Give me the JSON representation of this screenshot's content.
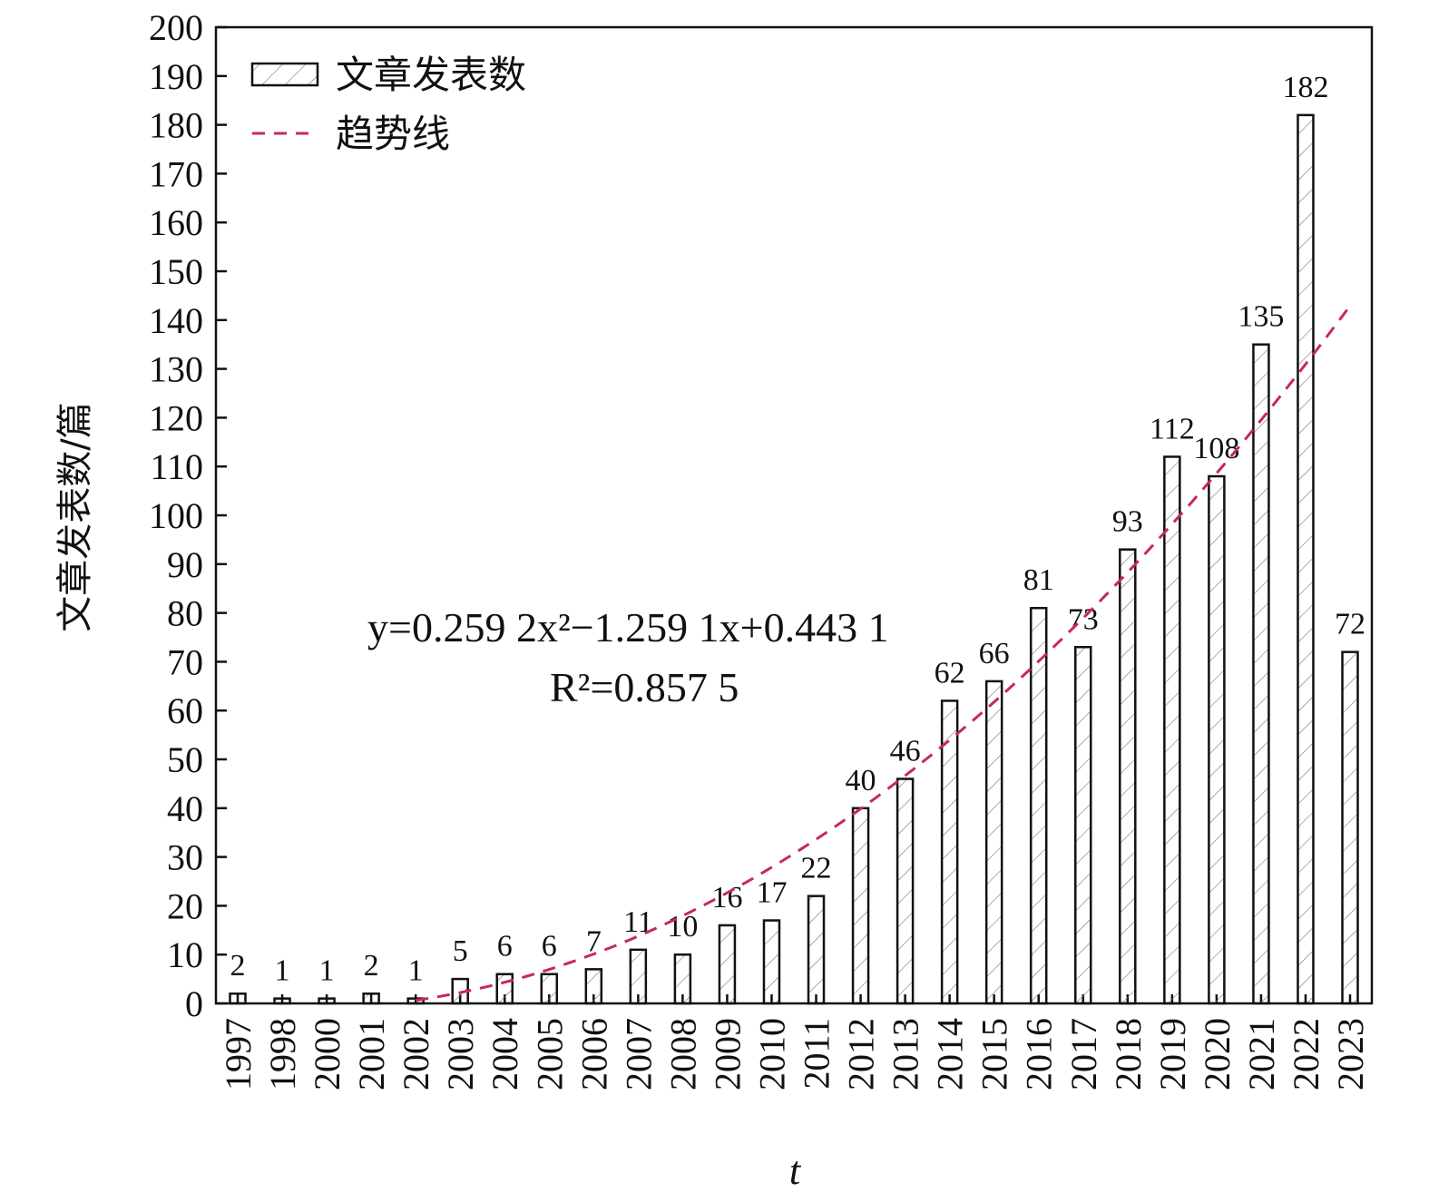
{
  "chart_data": {
    "type": "bar",
    "categories": [
      "1997",
      "1998",
      "2000",
      "2001",
      "2002",
      "2003",
      "2004",
      "2005",
      "2006",
      "2007",
      "2008",
      "2009",
      "2010",
      "2011",
      "2012",
      "2013",
      "2014",
      "2015",
      "2016",
      "2017",
      "2018",
      "2019",
      "2020",
      "2021",
      "2022",
      "2023"
    ],
    "values": [
      2,
      1,
      1,
      2,
      1,
      5,
      6,
      6,
      7,
      11,
      10,
      16,
      17,
      22,
      40,
      46,
      62,
      66,
      81,
      73,
      93,
      112,
      108,
      135,
      182,
      72
    ],
    "data_labels": [
      "2",
      "1",
      "1",
      "2",
      "1",
      "5",
      "6",
      "6",
      "7",
      "11",
      "10",
      "16",
      "17",
      "22",
      "40",
      "46",
      "62",
      "66",
      "81",
      "73",
      "93",
      "112",
      "108",
      "135",
      "182",
      "72"
    ],
    "series": [
      {
        "name": "文章发表数",
        "kind": "bar"
      },
      {
        "name": "趋势线",
        "kind": "trendline"
      }
    ],
    "trendline": {
      "type": "polynomial-2",
      "coefficients": {
        "a": 0.2592,
        "b": -1.2591,
        "c": 0.4431
      },
      "equation_label": "y=0.259 2x²−1.259 1x+0.443 1",
      "r2_label": "R²=0.857 5",
      "color": "#c8285a"
    },
    "xlabel": "t",
    "ylabel": "文章发表数/篇",
    "ylim": [
      0,
      200
    ],
    "yticks": [
      0,
      10,
      20,
      30,
      40,
      50,
      60,
      70,
      80,
      90,
      100,
      110,
      120,
      130,
      140,
      150,
      160,
      170,
      180,
      190,
      200
    ],
    "grid": false,
    "legend_position": "top-left",
    "bar_fill": "hatched"
  }
}
